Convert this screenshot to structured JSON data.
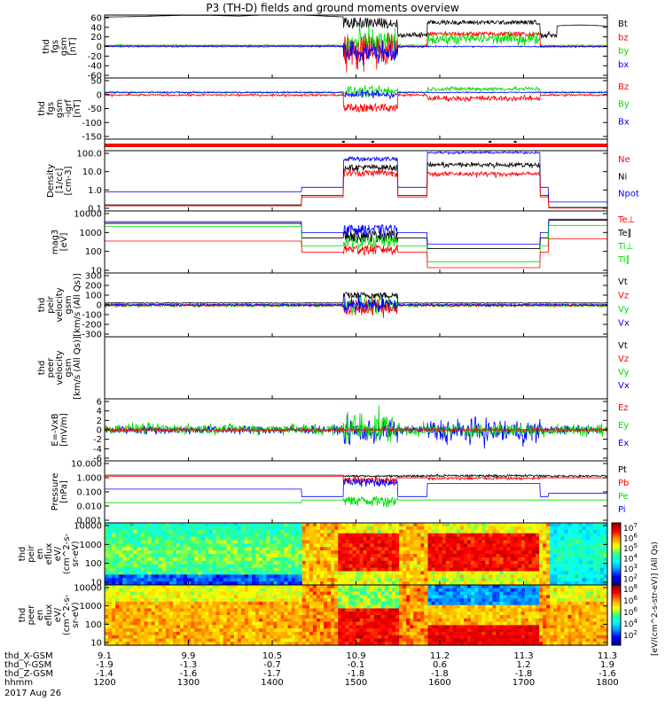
{
  "title": "P3 (TH-D) fields and ground moments overview",
  "colors": {
    "black": "#000000",
    "red": "#ff0000",
    "green": "#00dd00",
    "blue": "#0000ff"
  },
  "chart_data": {
    "type": "line",
    "title": "P3 (TH-D) fields and ground moments overview",
    "panels": [
      {
        "id": "fgs",
        "ylabel": [
          "thd",
          "fgs",
          "gsm",
          "[nT]"
        ],
        "ticks": [
          "60",
          "40",
          "20",
          "0",
          "-20",
          "-40",
          "-60"
        ],
        "legend": [
          {
            "text": "Bt",
            "color": "black"
          },
          {
            "text": "bz",
            "color": "red"
          },
          {
            "text": "by",
            "color": "green"
          },
          {
            "text": "bx",
            "color": "blue"
          }
        ]
      },
      {
        "id": "fgs_detrend",
        "ylabel": [
          "thd",
          "fgs",
          "gsm",
          "-igrf",
          "[nT]"
        ],
        "ticks": [
          "50",
          "0",
          "-50",
          "-100",
          "-150"
        ],
        "legend": [
          {
            "text": "Bz",
            "color": "red"
          },
          {
            "text": "By",
            "color": "green"
          },
          {
            "text": "Bx",
            "color": "blue"
          }
        ]
      },
      {
        "id": "bar",
        "ylabel": [],
        "ticks": [],
        "legend": []
      },
      {
        "id": "density",
        "ylabel": [
          "Density",
          "[1/cc]",
          "[cm-3]"
        ],
        "ticks": [
          "100.0",
          "10.0",
          "1.0",
          "0.1"
        ],
        "legend": [
          {
            "text": "Ne",
            "color": "red"
          },
          {
            "text": "Ni",
            "color": "black"
          },
          {
            "text": "Npot",
            "color": "blue"
          }
        ]
      },
      {
        "id": "temp",
        "ylabel": [
          "mag3",
          "[eV]"
        ],
        "ticks": [
          "10000",
          "1000",
          "100",
          "10"
        ],
        "legend": [
          {
            "text": "Te⊥",
            "color": "red"
          },
          {
            "text": "Te∥",
            "color": "black"
          },
          {
            "text": "Ti⊥",
            "color": "green"
          },
          {
            "text": "Ti∥",
            "color": "green"
          }
        ]
      },
      {
        "id": "ivel",
        "ylabel": [
          "thd",
          "peir",
          "velocity",
          "gsm",
          "[km/s (All Qs)]"
        ],
        "ticks": [
          "300",
          "200",
          "100",
          "0",
          "-100",
          "-200",
          "-300"
        ],
        "legend": [
          {
            "text": "Vt",
            "color": "black"
          },
          {
            "text": "Vz",
            "color": "red"
          },
          {
            "text": "Vy",
            "color": "green"
          },
          {
            "text": "Vx",
            "color": "blue"
          }
        ]
      },
      {
        "id": "evel",
        "ylabel": [
          "thd",
          "peer",
          "velocity",
          "gsm",
          "[km/s (All Qs)]"
        ],
        "ticks": [],
        "legend": [
          {
            "text": "Vt",
            "color": "black"
          },
          {
            "text": "Vz",
            "color": "red"
          },
          {
            "text": "Vy",
            "color": "green"
          },
          {
            "text": "Vx",
            "color": "blue"
          }
        ]
      },
      {
        "id": "efield",
        "ylabel": [
          "E=-VxB",
          "[mV/m]"
        ],
        "ticks": [
          "6",
          "4",
          "2",
          "0",
          "-2",
          "-4",
          "-6"
        ],
        "legend": [
          {
            "text": "Ez",
            "color": "red"
          },
          {
            "text": "Ey",
            "color": "green"
          },
          {
            "text": "Ex",
            "color": "blue"
          }
        ]
      },
      {
        "id": "pressure",
        "ylabel": [
          "Pressure",
          "[nPa]"
        ],
        "ticks": [
          "10.000",
          "1.000",
          "0.100",
          "0.010",
          "0.001"
        ],
        "legend": [
          {
            "text": "Pt",
            "color": "black"
          },
          {
            "text": "Pb",
            "color": "red"
          },
          {
            "text": "Pe",
            "color": "green"
          },
          {
            "text": "Pi",
            "color": "blue"
          }
        ]
      },
      {
        "id": "ispec",
        "ylabel": [
          "thd",
          "peir",
          "en",
          "eflux",
          "eV/",
          "(cm^2-s-",
          "sr-eV)"
        ],
        "ticks": [
          "10000",
          "1000",
          "100",
          "10"
        ],
        "legend": []
      },
      {
        "id": "espec",
        "ylabel": [
          "thd",
          "peer",
          "en",
          "eflux",
          "eV/",
          "(cm^2-s-",
          "sr-eV)"
        ],
        "ticks": [
          "10000",
          "1000",
          "100",
          "10"
        ],
        "legend": []
      }
    ],
    "colorbar": {
      "label": "[eV/(cm^2-s-str-eV)] (All Qs)",
      "ticks_top": [
        "10",
        "10",
        "10",
        "10",
        "10",
        "10"
      ],
      "exponents_top": [
        "7",
        "6",
        "5",
        "4",
        "3",
        "2"
      ],
      "ticks_bottom": [
        "10",
        "10",
        "10",
        "10",
        "10"
      ],
      "exponents_bottom": [
        "8",
        "6",
        "6",
        "4",
        "2"
      ]
    },
    "xaxis": {
      "rows": [
        {
          "label": "thd_X-GSM",
          "values": [
            "9.1",
            "9.9",
            "10.5",
            "10.9",
            "11.2",
            "11.3",
            "11.3"
          ]
        },
        {
          "label": "thd_Y-GSM",
          "values": [
            "-1.9",
            "-1.3",
            "-0.7",
            "-0.1",
            "0.6",
            "1.2",
            "1.9"
          ]
        },
        {
          "label": "thd_Z-GSM",
          "values": [
            "-1.4",
            "-1.6",
            "-1.7",
            "-1.8",
            "-1.8",
            "-1.8",
            "-1.6"
          ]
        },
        {
          "label": "hhmm",
          "values": [
            "1200",
            "1300",
            "1400",
            "1500",
            "1600",
            "1700",
            "1800"
          ]
        }
      ],
      "date": "2017 Aug 26",
      "time_range_hhmm": [
        "1200",
        "1800"
      ]
    }
  }
}
